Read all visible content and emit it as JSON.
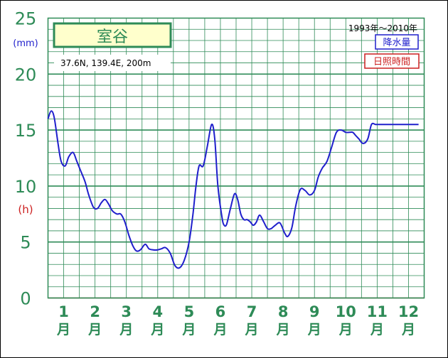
{
  "chart_data": {
    "type": "line",
    "station_name": "室谷",
    "location_text": "37.6N, 139.4E, 200m",
    "period": "1993年～2010年",
    "legend": [
      {
        "label": "降水量",
        "color": "#1f1fcc"
      },
      {
        "label": "日照時間",
        "color": "#cc1f1f"
      }
    ],
    "y_ticks": [
      "0",
      "5",
      "10",
      "15",
      "20",
      "25"
    ],
    "y_unit_top": "(mm)",
    "y_unit_mid": "(h)",
    "ylim": [
      0,
      25
    ],
    "x_month_numbers": [
      "1",
      "2",
      "3",
      "4",
      "5",
      "6",
      "7",
      "8",
      "9",
      "10",
      "11",
      "12"
    ],
    "x_month_suffix": "月",
    "series": [
      {
        "name": "降水量",
        "color": "#1f1fcc",
        "x": [
          0.0,
          0.1,
          0.2,
          0.32,
          0.42,
          0.55,
          0.66,
          0.8,
          0.92,
          1.05,
          1.18,
          1.3,
          1.45,
          1.58,
          1.7,
          1.82,
          1.93,
          2.05,
          2.2,
          2.32,
          2.45,
          2.58,
          2.7,
          2.82,
          2.95,
          3.1,
          3.22,
          3.35,
          3.5,
          3.62,
          3.75,
          3.9,
          4.05,
          4.2,
          4.35,
          4.5,
          4.62,
          4.72,
          4.82,
          4.95,
          5.08,
          5.22,
          5.32,
          5.42,
          5.55,
          5.62,
          5.7,
          5.82,
          5.95,
          6.05,
          6.15,
          6.25,
          6.35,
          6.45,
          6.55,
          6.65,
          6.75,
          6.88,
          7.0,
          7.12,
          7.25,
          7.4,
          7.55,
          7.65,
          7.78,
          7.9,
          8.05,
          8.2,
          8.35,
          8.5,
          8.62,
          8.75,
          8.9,
          9.05,
          9.2,
          9.35,
          9.5,
          9.62,
          9.72,
          9.82,
          9.92,
          10.05,
          10.2,
          10.32,
          10.45,
          10.58,
          10.7,
          10.82,
          10.95,
          11.08,
          11.22,
          11.35,
          11.48,
          11.58,
          11.68,
          11.76,
          11.82
        ],
        "values": [
          16.0,
          16.7,
          16.1,
          13.8,
          12.2,
          11.8,
          12.6,
          13.0,
          12.2,
          11.3,
          10.4,
          9.2,
          8.1,
          8.0,
          8.5,
          8.8,
          8.4,
          7.8,
          7.5,
          7.5,
          6.8,
          5.6,
          4.7,
          4.2,
          4.3,
          4.8,
          4.4,
          4.3,
          4.3,
          4.4,
          4.5,
          4.0,
          2.9,
          2.7,
          3.4,
          5.0,
          7.4,
          10.0,
          11.8,
          11.8,
          13.5,
          15.5,
          14.2,
          10.0,
          7.2,
          6.5,
          6.6,
          8.0,
          9.3,
          8.8,
          7.5,
          7.0,
          7.0,
          6.8,
          6.5,
          6.8,
          7.4,
          6.8,
          6.2,
          6.2,
          6.5,
          6.7,
          5.8,
          5.5,
          6.3,
          8.2,
          9.7,
          9.6,
          9.2,
          9.6,
          10.8,
          11.6,
          12.2,
          13.5,
          14.8,
          15.0,
          14.8,
          14.8,
          14.8,
          14.5,
          14.2,
          13.8,
          14.2,
          15.5,
          15.5,
          15.5,
          15.5,
          15.5,
          15.5,
          15.5,
          15.5,
          15.5,
          15.5,
          15.5,
          15.5,
          15.5,
          15.5
        ]
      }
    ],
    "grid": true
  }
}
